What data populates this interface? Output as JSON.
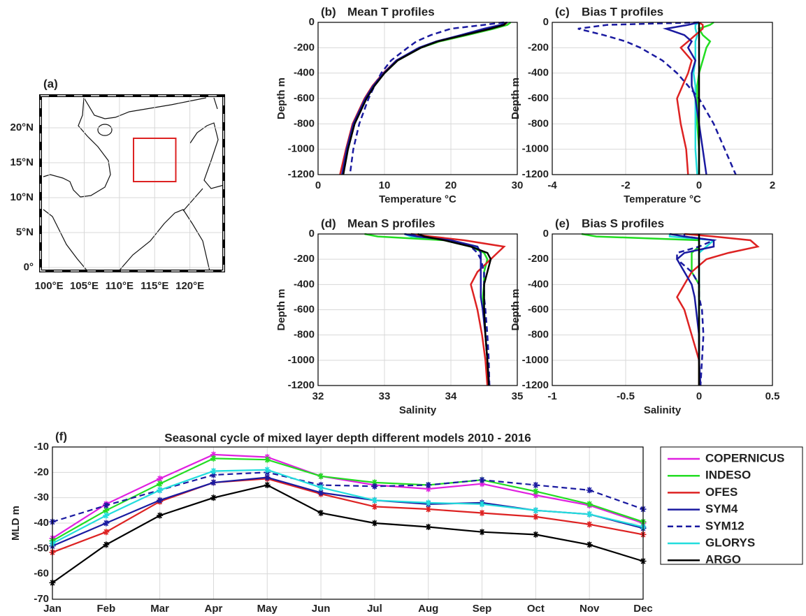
{
  "chart_data": [
    {
      "type": "map",
      "panel_label": "(a)",
      "xlim": [
        98.8,
        124.8
      ],
      "ylim": [
        -0.5,
        24.6
      ],
      "xticks": [
        {
          "value": 100,
          "label": "100°E"
        },
        {
          "value": 105,
          "label": "105°E"
        },
        {
          "value": 110,
          "label": "110°E"
        },
        {
          "value": 115,
          "label": "115°E"
        },
        {
          "value": 120,
          "label": "120°E"
        }
      ],
      "yticks": [
        {
          "value": 0,
          "label": "0°"
        },
        {
          "value": 5,
          "label": "5°N"
        },
        {
          "value": 10,
          "label": "10°N"
        },
        {
          "value": 15,
          "label": "15°N"
        },
        {
          "value": 20,
          "label": "20°N"
        }
      ],
      "grid": true,
      "box": {
        "lon": [
          112,
          118
        ],
        "lat": [
          12.3,
          18.5
        ],
        "color": "#dd2222"
      }
    },
    {
      "type": "profile",
      "panel_label": "(b)",
      "title": "Mean T profiles",
      "xlabel": "Temperature °C",
      "ylabel": "Depth m",
      "xlim": [
        0,
        30
      ],
      "xticks": [
        0,
        10,
        20,
        30
      ],
      "ylim": [
        -1200,
        0
      ],
      "yticks": [
        -1200,
        -1000,
        -800,
        -600,
        -400,
        -200,
        0
      ],
      "grid": true,
      "y": [
        0,
        -20,
        -50,
        -100,
        -150,
        -200,
        -300,
        -400,
        -500,
        -600,
        -800,
        -1000,
        -1200
      ],
      "series": [
        {
          "color": "#22dddd",
          "dash": false,
          "values": [
            28.4,
            28,
            26,
            22,
            18,
            15.4,
            11.9,
            10,
            8.4,
            7.2,
            5.4,
            4.4,
            3.7
          ]
        },
        {
          "color": "#22dd22",
          "dash": false,
          "values": [
            29,
            28.5,
            26.5,
            22.5,
            18.3,
            15.5,
            12,
            10,
            8.4,
            7.2,
            5.4,
            4.4,
            3.7
          ]
        },
        {
          "color": "#dd2222",
          "dash": false,
          "values": [
            28.5,
            28,
            26,
            22,
            18,
            15.3,
            11.8,
            9.8,
            8.2,
            7,
            5.2,
            4.2,
            3.3
          ]
        },
        {
          "color": "#1a1aa0",
          "dash": false,
          "values": [
            28.5,
            27.5,
            25,
            21.5,
            17.8,
            15.2,
            11.8,
            9.9,
            8.3,
            7.1,
            5.3,
            4.3,
            3.6
          ]
        },
        {
          "color": "#1a1aa0",
          "dash": true,
          "values": [
            28,
            25,
            20,
            17,
            14.8,
            13.5,
            11,
            9.5,
            8.5,
            7.6,
            6.2,
            5.3,
            4.8
          ]
        },
        {
          "color": "#000000",
          "dash": false,
          "values": [
            28.3,
            28,
            26,
            22,
            18,
            15.5,
            12,
            10,
            8.5,
            7.3,
            5.5,
            4.5,
            3.8
          ]
        }
      ]
    },
    {
      "type": "profile",
      "panel_label": "(c)",
      "title": "Bias T profiles",
      "xlabel": "Temperature °C",
      "ylabel": "Depth m",
      "xlim": [
        -4,
        2
      ],
      "xticks": [
        -4,
        -2,
        0,
        2
      ],
      "ylim": [
        -1200,
        0
      ],
      "yticks": [
        -1200,
        -1000,
        -800,
        -600,
        -400,
        -200,
        0
      ],
      "grid": true,
      "y": [
        0,
        -20,
        -50,
        -100,
        -150,
        -200,
        -300,
        -400,
        -500,
        -600,
        -800,
        -1000,
        -1200
      ],
      "series": [
        {
          "color": "#22dddd",
          "dash": false,
          "values": [
            0,
            -0.1,
            -0.1,
            -0.05,
            -0.1,
            -0.1,
            -0.1,
            -0.15,
            -0.1,
            -0.1,
            -0.1,
            -0.1,
            -0.05
          ]
        },
        {
          "color": "#22dd22",
          "dash": false,
          "values": [
            0.4,
            0.3,
            0,
            0.1,
            0.3,
            0.2,
            0.1,
            0,
            -0.05,
            -0.05,
            -0.05,
            0,
            0
          ]
        },
        {
          "color": "#dd2222",
          "dash": false,
          "values": [
            0,
            0.1,
            0.1,
            -0.1,
            -0.3,
            -0.5,
            -0.2,
            -0.3,
            -0.45,
            -0.6,
            -0.5,
            -0.35,
            -0.3
          ]
        },
        {
          "color": "#1a1aa0",
          "dash": false,
          "values": [
            0,
            -0.3,
            -0.9,
            -0.4,
            -0.2,
            -0.3,
            -0.1,
            -0.2,
            -0.2,
            -0.1,
            0,
            0.1,
            0.2
          ]
        },
        {
          "color": "#1a1aa0",
          "dash": true,
          "values": [
            0,
            -2.5,
            -3.3,
            -2.6,
            -2,
            -1.6,
            -1,
            -0.6,
            -0.3,
            0,
            0.4,
            0.7,
            1
          ]
        },
        {
          "color": "#000000",
          "dash": false,
          "values": [
            0,
            0,
            0,
            0,
            0,
            0,
            0,
            0,
            0,
            0,
            0,
            0,
            0
          ]
        }
      ]
    },
    {
      "type": "profile",
      "panel_label": "(d)",
      "title": "Mean S profiles",
      "xlabel": "Salinity",
      "ylabel": "Depth m",
      "xlim": [
        32,
        35
      ],
      "xticks": [
        32,
        33,
        34,
        35
      ],
      "ylim": [
        -1200,
        0
      ],
      "yticks": [
        -1200,
        -1000,
        -800,
        -600,
        -400,
        -200,
        0
      ],
      "grid": true,
      "y": [
        0,
        -20,
        -50,
        -100,
        -150,
        -200,
        -300,
        -400,
        -500,
        -600,
        -800,
        -1000,
        -1200
      ],
      "series": [
        {
          "color": "#22dddd",
          "dash": false,
          "values": [
            33.3,
            33.4,
            34,
            34.35,
            34.5,
            34.55,
            34.5,
            34.5,
            34.5,
            34.5,
            34.52,
            34.55,
            34.57
          ]
        },
        {
          "color": "#22dd22",
          "dash": false,
          "values": [
            32.7,
            32.9,
            33.9,
            34.3,
            34.5,
            34.55,
            34.5,
            34.5,
            34.48,
            34.5,
            34.52,
            34.55,
            34.56
          ]
        },
        {
          "color": "#dd2222",
          "dash": false,
          "values": [
            33.4,
            33.7,
            34.2,
            34.8,
            34.7,
            34.6,
            34.4,
            34.3,
            34.35,
            34.4,
            34.47,
            34.52,
            34.55
          ]
        },
        {
          "color": "#1a1aa0",
          "dash": false,
          "values": [
            33.3,
            33.5,
            34,
            34.4,
            34.45,
            34.45,
            34.45,
            34.45,
            34.45,
            34.48,
            34.52,
            34.55,
            34.58
          ]
        },
        {
          "color": "#1a1aa0",
          "dash": true,
          "values": [
            33.4,
            33.5,
            34,
            34.3,
            34.4,
            34.45,
            34.5,
            34.5,
            34.5,
            34.52,
            34.55,
            34.57,
            34.58
          ]
        },
        {
          "color": "#000000",
          "dash": false,
          "values": [
            33.5,
            33.6,
            33.9,
            34.3,
            34.55,
            34.6,
            34.55,
            34.5,
            34.5,
            34.5,
            34.52,
            34.55,
            34.57
          ]
        }
      ]
    },
    {
      "type": "profile",
      "panel_label": "(e)",
      "title": "Bias S profiles",
      "xlabel": "Salinity",
      "ylabel": "Depth m",
      "xlim": [
        -1,
        0.5
      ],
      "xticks": [
        -1,
        -0.5,
        0,
        0.5
      ],
      "ylim": [
        -1200,
        0
      ],
      "yticks": [
        -1200,
        -1000,
        -800,
        -600,
        -400,
        -200,
        0
      ],
      "grid": true,
      "y": [
        0,
        -20,
        -50,
        -100,
        -150,
        -200,
        -300,
        -400,
        -500,
        -600,
        -800,
        -1000,
        -1200
      ],
      "series": [
        {
          "color": "#22dddd",
          "dash": false,
          "values": [
            -0.2,
            -0.2,
            0.1,
            0.05,
            0,
            0,
            0,
            0,
            0,
            0,
            0,
            0,
            0
          ]
        },
        {
          "color": "#22dd22",
          "dash": false,
          "values": [
            -0.8,
            -0.7,
            0,
            0,
            -0.05,
            -0.05,
            -0.05,
            0,
            0,
            0,
            0,
            0,
            0
          ]
        },
        {
          "color": "#dd2222",
          "dash": false,
          "values": [
            -0.1,
            0.1,
            0.35,
            0.4,
            0.2,
            0.05,
            -0.05,
            -0.1,
            -0.15,
            -0.1,
            -0.05,
            0,
            0
          ]
        },
        {
          "color": "#1a1aa0",
          "dash": false,
          "values": [
            -0.2,
            -0.1,
            0.1,
            0.1,
            -0.1,
            -0.15,
            -0.1,
            -0.05,
            -0.03,
            -0.02,
            0,
            0,
            0.01
          ]
        },
        {
          "color": "#1a1aa0",
          "dash": true,
          "values": [
            -0.1,
            -0.1,
            0.1,
            0,
            -0.15,
            -0.15,
            -0.05,
            0,
            0,
            0.02,
            0.03,
            0.02,
            0.01
          ]
        },
        {
          "color": "#000000",
          "dash": false,
          "values": [
            0,
            0,
            0,
            0,
            0,
            0,
            0,
            0,
            0,
            0,
            0,
            0,
            0
          ]
        }
      ]
    },
    {
      "type": "line",
      "panel_label": "(f)",
      "title": "Seasonal cycle of mixed layer depth different models 2010 - 2016",
      "ylabel": "MLD m",
      "categories": [
        "Jan",
        "Feb",
        "Mar",
        "Apr",
        "May",
        "Jun",
        "Jul",
        "Aug",
        "Sep",
        "Oct",
        "Nov",
        "Dec"
      ],
      "ylim": [
        -70,
        -10
      ],
      "yticks": [
        -70,
        -60,
        -50,
        -40,
        -30,
        -20,
        -10
      ],
      "grid": true,
      "series": [
        {
          "name": "COPERNICUS",
          "color": "#e020e0",
          "dash": false,
          "values": [
            -46,
            -32.5,
            -22.5,
            -13,
            -14,
            -21.5,
            -25,
            -26.5,
            -24.5,
            -29,
            -33,
            -40
          ]
        },
        {
          "name": "INDESO",
          "color": "#22dd22",
          "dash": false,
          "values": [
            -47,
            -35,
            -24.5,
            -14.5,
            -15,
            -21.5,
            -24,
            -25,
            -23,
            -27.5,
            -32.5,
            -39.5
          ]
        },
        {
          "name": "OFES",
          "color": "#dd2222",
          "dash": false,
          "values": [
            -51.5,
            -43.5,
            -31.5,
            -24,
            -22.5,
            -28.5,
            -33.5,
            -34.5,
            -36,
            -37.5,
            -40.5,
            -44.5
          ]
        },
        {
          "name": "SYM4",
          "color": "#1a1aa0",
          "dash": false,
          "values": [
            -49,
            -40,
            -31,
            -24,
            -22,
            -28,
            -31,
            -32.5,
            -32,
            -35,
            -36.5,
            -42
          ]
        },
        {
          "name": "SYM12",
          "color": "#1a1aa0",
          "dash": true,
          "values": [
            -39.5,
            -33,
            -27,
            -21,
            -20,
            -25,
            -25.5,
            -25,
            -23,
            -25,
            -27,
            -34.5
          ]
        },
        {
          "name": "GLORYS",
          "color": "#22dddd",
          "dash": false,
          "values": [
            -48,
            -37,
            -27,
            -19.5,
            -19,
            -26,
            -31,
            -32,
            -32.5,
            -35,
            -36.5,
            -41.5
          ]
        },
        {
          "name": "ARGO",
          "color": "#000000",
          "dash": false,
          "values": [
            -63.5,
            -48.5,
            -37,
            -30,
            -25,
            -36,
            -40,
            -41.5,
            -43.5,
            -44.5,
            -48.5,
            -55
          ]
        }
      ]
    }
  ]
}
